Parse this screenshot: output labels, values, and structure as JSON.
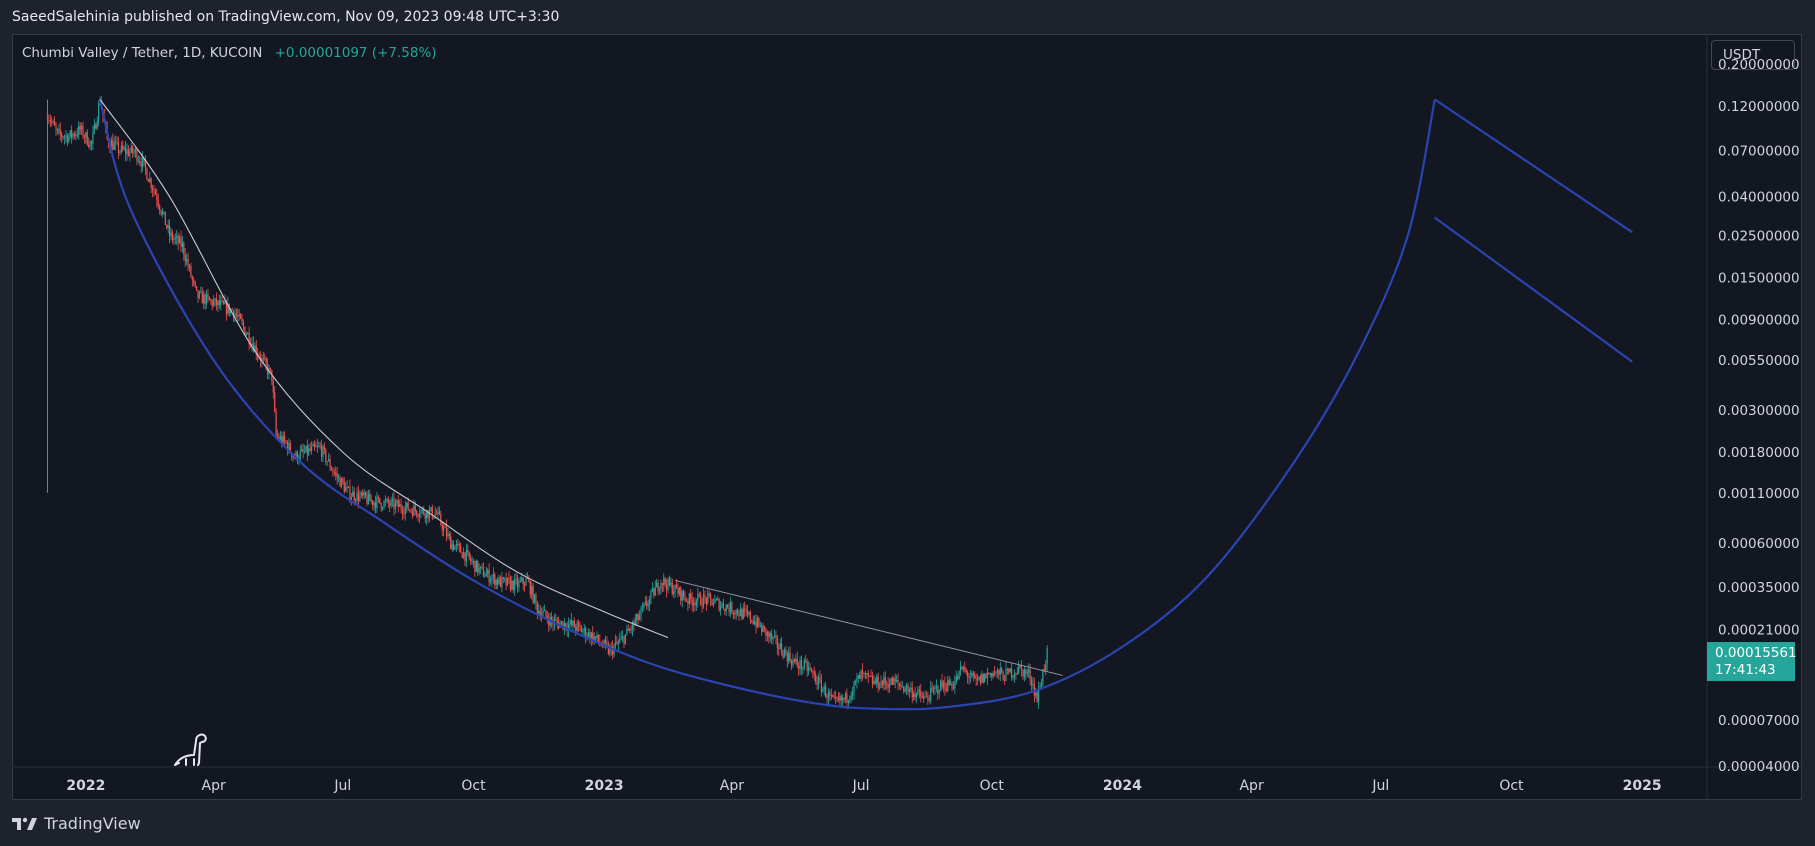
{
  "header": {
    "published_line": "SaeedSalehinia published on TradingView.com, Nov 09, 2023 09:48 UTC+3:30"
  },
  "legend": {
    "symbol_text": "Chumbi Valley / Tether, 1D, KUCOIN",
    "change_text": "+0.00001097 (+7.58%)"
  },
  "currency": "USDT",
  "price_tag": {
    "price": "0.00015561",
    "countdown": "17:41:43"
  },
  "footer": {
    "brand_text": "TradingView"
  },
  "colors": {
    "background": "#131722",
    "frame": "#1e222d",
    "up_candle": "#26a69a",
    "down_candle": "#ef5350",
    "curve_blue": "#2a44b0",
    "trendline": "#c8cad0",
    "axis_text": "#d1d4dc"
  },
  "icons": {
    "watermark": "dinosaur-icon",
    "brand_logo": "tradingview-logo-icon"
  },
  "chart_data": {
    "type": "candlestick",
    "y_scale": "log",
    "y_range": [
      4e-05,
      0.2
    ],
    "x_range": [
      "2021-11-10",
      "2025-02-15"
    ],
    "y_ticks": [
      "0.20000000",
      "0.12000000",
      "0.07000000",
      "0.04000000",
      "0.02500000",
      "0.01500000",
      "0.00900000",
      "0.00550000",
      "0.00300000",
      "0.00180000",
      "0.00110000",
      "0.00060000",
      "0.00035000",
      "0.00021000",
      "0.00007000",
      "0.00004000"
    ],
    "x_ticks": [
      {
        "label": "2022",
        "date": "2022-01-01",
        "bold": true
      },
      {
        "label": "Apr",
        "date": "2022-04-01",
        "bold": false
      },
      {
        "label": "Jul",
        "date": "2022-07-01",
        "bold": false
      },
      {
        "label": "Oct",
        "date": "2022-10-01",
        "bold": false
      },
      {
        "label": "2023",
        "date": "2023-01-01",
        "bold": true
      },
      {
        "label": "Apr",
        "date": "2023-04-01",
        "bold": false
      },
      {
        "label": "Jul",
        "date": "2023-07-01",
        "bold": false
      },
      {
        "label": "Oct",
        "date": "2023-10-01",
        "bold": false
      },
      {
        "label": "2024",
        "date": "2024-01-01",
        "bold": true
      },
      {
        "label": "Apr",
        "date": "2024-04-01",
        "bold": false
      },
      {
        "label": "Jul",
        "date": "2024-07-01",
        "bold": false
      },
      {
        "label": "Oct",
        "date": "2024-10-01",
        "bold": false
      },
      {
        "label": "2025",
        "date": "2025-01-01",
        "bold": true
      }
    ],
    "price_path": [
      [
        "2021-12-05",
        0.11
      ],
      [
        "2021-12-12",
        0.085
      ],
      [
        "2021-12-20",
        0.083
      ],
      [
        "2021-12-28",
        0.09
      ],
      [
        "2022-01-05",
        0.075
      ],
      [
        "2022-01-11",
        0.13
      ],
      [
        "2022-01-16",
        0.08
      ],
      [
        "2022-01-25",
        0.07
      ],
      [
        "2022-02-05",
        0.068
      ],
      [
        "2022-02-10",
        0.06
      ],
      [
        "2022-02-20",
        0.04
      ],
      [
        "2022-03-01",
        0.025
      ],
      [
        "2022-03-10",
        0.022
      ],
      [
        "2022-03-20",
        0.012
      ],
      [
        "2022-04-01",
        0.011
      ],
      [
        "2022-04-15",
        0.01
      ],
      [
        "2022-04-25",
        0.0075
      ],
      [
        "2022-05-05",
        0.0055
      ],
      [
        "2022-05-12",
        0.0045
      ],
      [
        "2022-05-15",
        0.0022
      ],
      [
        "2022-05-22",
        0.002
      ],
      [
        "2022-05-28",
        0.0017
      ],
      [
        "2022-06-05",
        0.0018
      ],
      [
        "2022-06-15",
        0.0019
      ],
      [
        "2022-06-25",
        0.0014
      ],
      [
        "2022-07-05",
        0.0011
      ],
      [
        "2022-07-20",
        0.001
      ],
      [
        "2022-08-05",
        0.00095
      ],
      [
        "2022-08-25",
        0.00088
      ],
      [
        "2022-09-05",
        0.00085
      ],
      [
        "2022-09-15",
        0.0006
      ],
      [
        "2022-09-25",
        0.00052
      ],
      [
        "2022-10-05",
        0.00043
      ],
      [
        "2022-10-20",
        0.00037
      ],
      [
        "2022-11-01",
        0.00036
      ],
      [
        "2022-11-08",
        0.00038
      ],
      [
        "2022-11-15",
        0.00027
      ],
      [
        "2022-11-25",
        0.00023
      ],
      [
        "2022-12-10",
        0.00022
      ],
      [
        "2022-12-25",
        0.00019
      ],
      [
        "2023-01-05",
        0.00016
      ],
      [
        "2023-01-15",
        0.00019
      ],
      [
        "2023-01-25",
        0.00024
      ],
      [
        "2023-02-05",
        0.00033
      ],
      [
        "2023-02-10",
        0.00038
      ],
      [
        "2023-02-20",
        0.00034
      ],
      [
        "2023-03-01",
        0.0003
      ],
      [
        "2023-03-15",
        0.0003
      ],
      [
        "2023-04-01",
        0.00027
      ],
      [
        "2023-04-15",
        0.00024
      ],
      [
        "2023-05-01",
        0.00018
      ],
      [
        "2023-05-15",
        0.00014
      ],
      [
        "2023-05-25",
        0.00013
      ],
      [
        "2023-06-05",
        0.0001
      ],
      [
        "2023-06-12",
        8.5e-05
      ],
      [
        "2023-06-20",
        9e-05
      ],
      [
        "2023-07-01",
        0.00012
      ],
      [
        "2023-07-10",
        0.00011
      ],
      [
        "2023-07-25",
        0.00011
      ],
      [
        "2023-08-05",
        0.0001
      ],
      [
        "2023-08-15",
        9e-05
      ],
      [
        "2023-08-25",
        0.000105
      ],
      [
        "2023-09-05",
        0.00011
      ],
      [
        "2023-09-10",
        0.00013
      ],
      [
        "2023-09-20",
        0.00011
      ],
      [
        "2023-10-01",
        0.000125
      ],
      [
        "2023-10-10",
        0.00012
      ],
      [
        "2023-10-20",
        0.00013
      ],
      [
        "2023-10-28",
        0.00012
      ],
      [
        "2023-11-02",
        9e-05
      ],
      [
        "2023-11-06",
        0.000125
      ],
      [
        "2023-11-09",
        0.000156
      ]
    ],
    "drawings": {
      "upper_arc": [
        [
          "2022-01-11",
          0.13
        ],
        [
          "2022-03-01",
          0.04
        ],
        [
          "2022-05-01",
          0.006
        ],
        [
          "2022-07-01",
          0.0018
        ],
        [
          "2022-09-01",
          0.00085
        ],
        [
          "2022-11-01",
          0.00042
        ],
        [
          "2023-01-01",
          0.00026
        ],
        [
          "2023-02-15",
          0.00019
        ]
      ],
      "lower_arc": [
        [
          "2022-01-11",
          0.13
        ],
        [
          "2022-02-01",
          0.035
        ],
        [
          "2022-04-01",
          0.0055
        ],
        [
          "2022-06-01",
          0.0016
        ],
        [
          "2022-08-01",
          0.00075
        ],
        [
          "2022-10-01",
          0.00038
        ],
        [
          "2022-12-01",
          0.00022
        ],
        [
          "2023-02-01",
          0.00014
        ],
        [
          "2023-04-01",
          0.000105
        ],
        [
          "2023-06-01",
          8.5e-05
        ],
        [
          "2023-07-15",
          8e-05
        ],
        [
          "2023-09-01",
          8.2e-05
        ],
        [
          "2023-11-01",
          0.0001
        ],
        [
          "2024-01-01",
          0.00017
        ],
        [
          "2024-03-01",
          0.0004
        ],
        [
          "2024-05-01",
          0.0016
        ],
        [
          "2024-06-15",
          0.006
        ],
        [
          "2024-07-20",
          0.025
        ],
        [
          "2024-08-08",
          0.13
        ]
      ],
      "descending_line": [
        [
          "2023-02-20",
          0.00038
        ],
        [
          "2023-11-20",
          0.00012
        ]
      ],
      "projection_line_1": [
        [
          "2024-08-08",
          0.13
        ],
        [
          "2024-12-25",
          0.026
        ]
      ],
      "projection_line_2": [
        [
          "2024-08-08",
          0.031
        ],
        [
          "2024-12-25",
          0.0054
        ]
      ]
    }
  }
}
